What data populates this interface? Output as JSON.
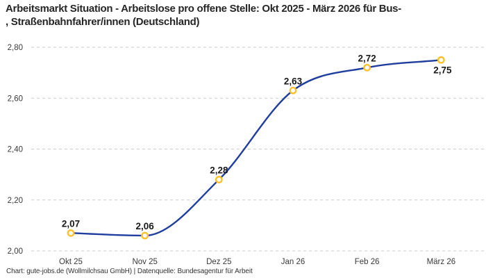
{
  "title": "Arbeitsmarkt Situation - Arbeitslose pro offene Stelle: Okt 2025 - März 2026 für Bus-\n, Straßenbahnfahrer/innen (Deutschland)",
  "footer": "Chart: gute-jobs.de (Wollmilchsau GmbH) | Datenquelle: Bundesagentur für Arbeit",
  "chart_data": {
    "type": "line",
    "title": "Arbeitsmarkt Situation - Arbeitslose pro offene Stelle: Okt 2025 - März 2026 für Bus-, Straßenbahnfahrer/innen (Deutschland)",
    "xlabel": "",
    "ylabel": "",
    "categories": [
      "Okt 25",
      "Nov 25",
      "Dez 25",
      "Jan 26",
      "Feb 26",
      "März 26"
    ],
    "series": [
      {
        "name": "Arbeitslose pro offene Stelle",
        "values": [
          2.07,
          2.06,
          2.28,
          2.63,
          2.72,
          2.75
        ],
        "point_labels": [
          "2,07",
          "2,06",
          "2,28",
          "2,63",
          "2,72",
          "2,75"
        ],
        "label_positions": [
          "top",
          "top",
          "top",
          "top",
          "top",
          "bottom"
        ]
      }
    ],
    "ylim": [
      2.0,
      2.8
    ],
    "yticks": [
      {
        "value": 2.0,
        "label": "2,00"
      },
      {
        "value": 2.2,
        "label": "2,20"
      },
      {
        "value": 2.4,
        "label": "2,40"
      },
      {
        "value": 2.6,
        "label": "2,60"
      },
      {
        "value": 2.8,
        "label": "2,80"
      }
    ],
    "grid": "horizontal-dashed",
    "legend": "none",
    "line_style": "smooth-monotone",
    "colors": {
      "line": "#1F3E9E",
      "marker_stroke": "#FBC22D",
      "marker_fill": "#FFFFFF",
      "grid": "#CBCBCB",
      "tick_text": "#3A3A3A",
      "point_label_text": "#1A1A1A",
      "background": "#FFFFFF"
    }
  }
}
